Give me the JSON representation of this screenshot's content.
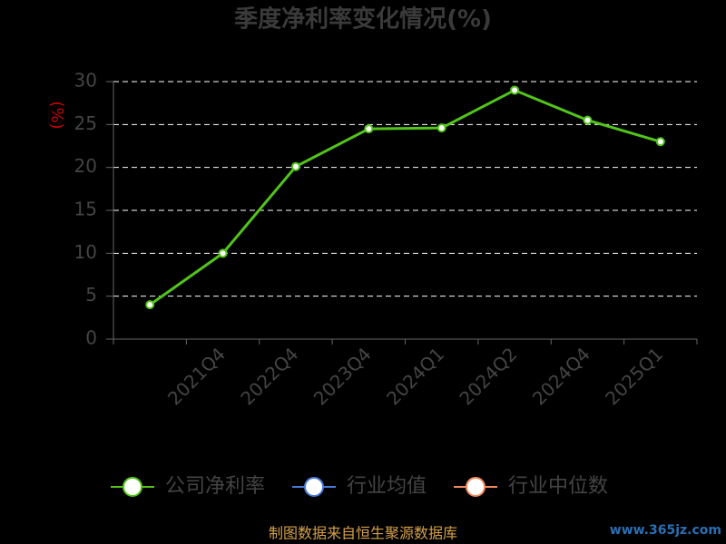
{
  "chart_data": {
    "type": "line",
    "title": "季度净利率变化情况(%)",
    "y_label": "(%)",
    "categories": [
      null,
      "2021Q4",
      "2022Q4",
      "2023Q4",
      "2024Q1",
      "2024Q2",
      "2024Q4",
      "2025Q1"
    ],
    "series": [
      {
        "name": "公司净利率",
        "color": "#52c41a",
        "values": [
          4,
          10,
          20.1,
          24.5,
          24.6,
          29,
          25.5,
          23
        ]
      },
      {
        "name": "行业均值",
        "color": "#4a7bd6",
        "values": [
          null,
          null,
          null,
          null,
          null,
          null,
          null,
          null
        ]
      },
      {
        "name": "行业中位数",
        "color": "#f08a5d",
        "values": [
          null,
          null,
          null,
          null,
          null,
          null,
          null,
          null
        ]
      }
    ],
    "ylim": [
      0,
      30
    ],
    "yticks": [
      0,
      5,
      10,
      15,
      20,
      25,
      30
    ],
    "grid": true,
    "source": "制图数据来自恒生聚源数据库",
    "watermark": "www.365jz.com"
  }
}
